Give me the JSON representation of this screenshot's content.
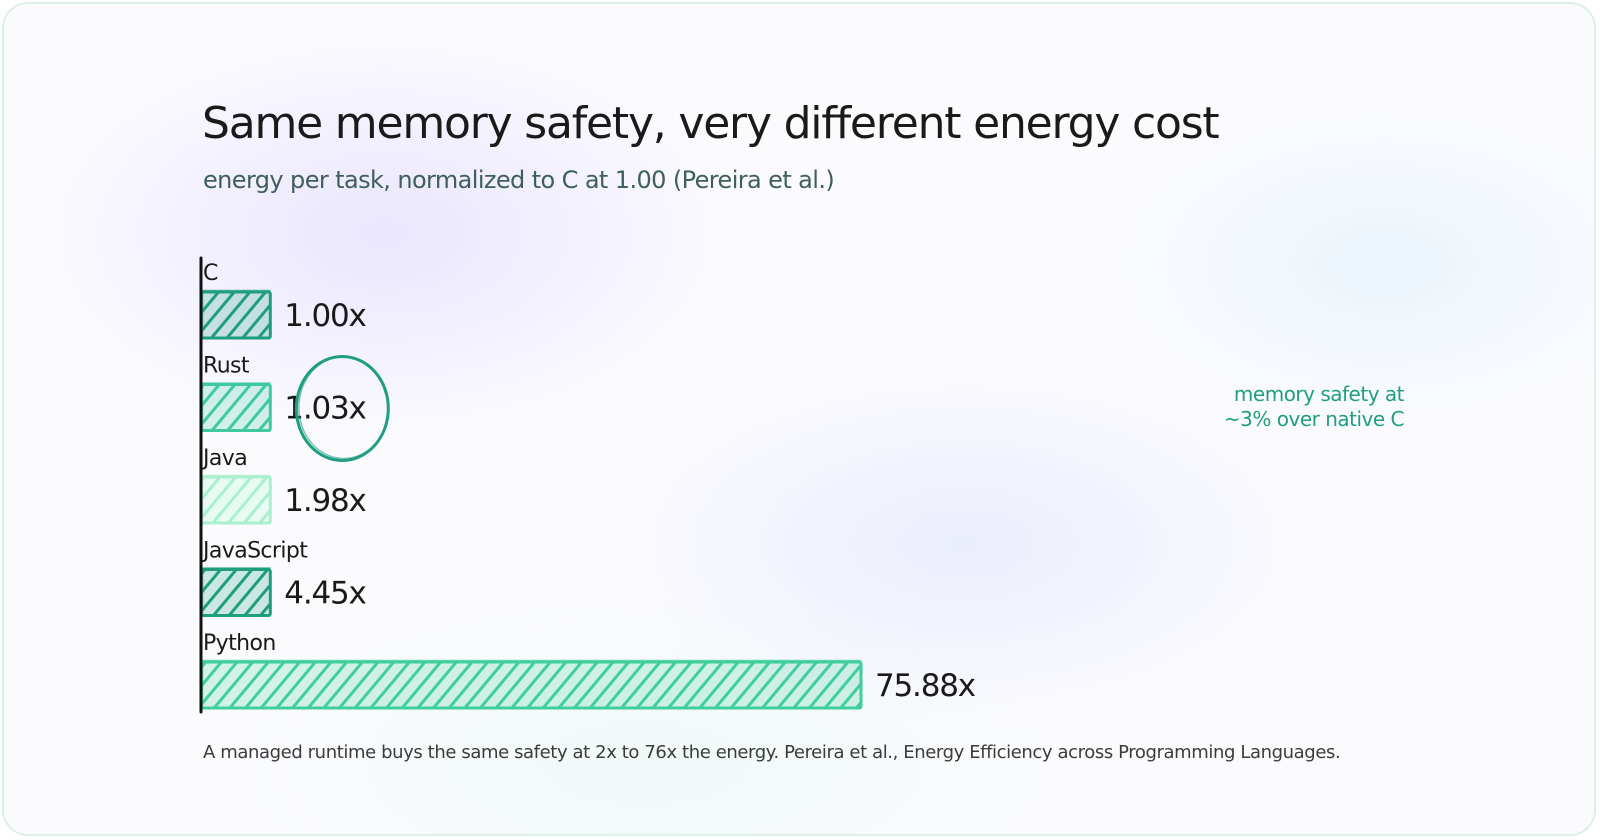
{
  "chart_data": {
    "type": "bar",
    "orientation": "horizontal",
    "title": "Same memory safety, very different energy cost",
    "subtitle": "energy per task, normalized to C at 1.00 (Pereira et al.)",
    "categories": [
      "C",
      "Rust",
      "Java",
      "JavaScript",
      "Python"
    ],
    "values": [
      1.0,
      1.03,
      1.98,
      4.45,
      75.88
    ],
    "value_labels": [
      "1.00x",
      "1.03x",
      "1.98x",
      "4.45x",
      "75.88x"
    ],
    "bar_colors": [
      "#1f9e7e",
      "#3fc9a0",
      "#a8f0cf",
      "#1f9e7e",
      "#3fcf9c"
    ],
    "xlim": [
      0,
      75.88
    ],
    "min_bar_fraction": 0.105,
    "grid": false,
    "highlight": {
      "category": "Rust",
      "shape": "circle",
      "color": "#1f9e82"
    },
    "annotation": "memory safety at\n~3% over native C",
    "annotation_color": "#1f9e82",
    "footnote": "A managed runtime buys the same safety at 2x to 76x the energy. Pereira et al., Energy Efficiency across Programming Languages."
  }
}
